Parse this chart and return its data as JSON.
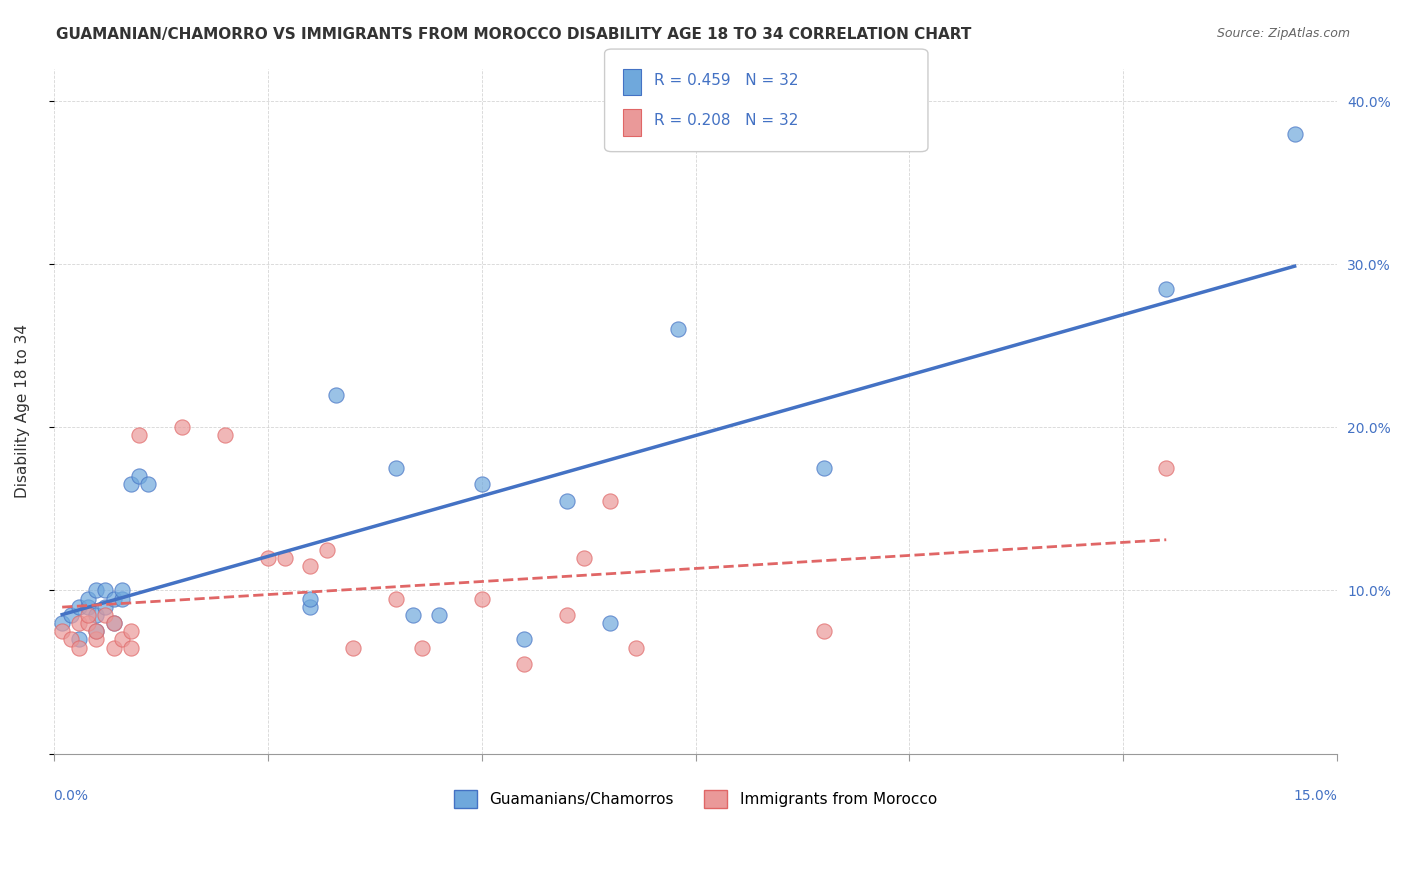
{
  "title": "GUAMANIAN/CHAMORRO VS IMMIGRANTS FROM MOROCCO DISABILITY AGE 18 TO 34 CORRELATION CHART",
  "source": "Source: ZipAtlas.com",
  "ylabel": "Disability Age 18 to 34",
  "legend_label1": "Guamanians/Chamorros",
  "legend_label2": "Immigrants from Morocco",
  "blue_color": "#6fa8dc",
  "pink_color": "#ea9999",
  "line_blue": "#4472c4",
  "line_pink": "#e06666",
  "text_color": "#4472c4",
  "R1": 0.459,
  "R2": 0.208,
  "N": 32,
  "xlim": [
    0.0,
    0.15
  ],
  "ylim": [
    0.0,
    0.42
  ],
  "guam_x": [
    0.001,
    0.002,
    0.003,
    0.003,
    0.004,
    0.004,
    0.005,
    0.005,
    0.005,
    0.006,
    0.006,
    0.007,
    0.007,
    0.008,
    0.008,
    0.009,
    0.01,
    0.011,
    0.03,
    0.03,
    0.033,
    0.04,
    0.042,
    0.045,
    0.05,
    0.055,
    0.06,
    0.065,
    0.073,
    0.09,
    0.13,
    0.145
  ],
  "guam_y": [
    0.08,
    0.085,
    0.09,
    0.07,
    0.09,
    0.095,
    0.085,
    0.1,
    0.075,
    0.1,
    0.09,
    0.095,
    0.08,
    0.095,
    0.1,
    0.165,
    0.17,
    0.165,
    0.09,
    0.095,
    0.22,
    0.175,
    0.085,
    0.085,
    0.165,
    0.07,
    0.155,
    0.08,
    0.26,
    0.175,
    0.285,
    0.38
  ],
  "morocco_x": [
    0.001,
    0.002,
    0.003,
    0.003,
    0.004,
    0.004,
    0.005,
    0.005,
    0.006,
    0.007,
    0.007,
    0.008,
    0.009,
    0.009,
    0.01,
    0.015,
    0.02,
    0.025,
    0.027,
    0.03,
    0.032,
    0.035,
    0.04,
    0.043,
    0.05,
    0.055,
    0.06,
    0.062,
    0.065,
    0.068,
    0.09,
    0.13
  ],
  "morocco_y": [
    0.075,
    0.07,
    0.065,
    0.08,
    0.08,
    0.085,
    0.07,
    0.075,
    0.085,
    0.08,
    0.065,
    0.07,
    0.065,
    0.075,
    0.195,
    0.2,
    0.195,
    0.12,
    0.12,
    0.115,
    0.125,
    0.065,
    0.095,
    0.065,
    0.095,
    0.055,
    0.085,
    0.12,
    0.155,
    0.065,
    0.075,
    0.175
  ]
}
